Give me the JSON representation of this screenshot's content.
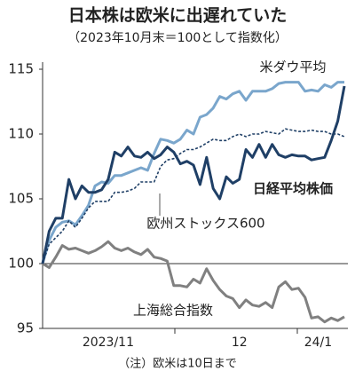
{
  "chart_data": {
    "type": "line",
    "title": "日本株は欧米に出遅れていた",
    "subtitle": "（2023年10月末＝100として指数化）",
    "note": "（注）欧米は10日まで",
    "categories": [
      null,
      null,
      null,
      null,
      null,
      null,
      null,
      null,
      null,
      null,
      "2023/11",
      null,
      null,
      null,
      null,
      null,
      null,
      null,
      null,
      null,
      null,
      null,
      null,
      null,
      null,
      null,
      null,
      null,
      null,
      null,
      "12",
      null,
      null,
      null,
      null,
      null,
      null,
      null,
      null,
      null,
      null,
      null,
      "24/1",
      null,
      null,
      null,
      null
    ],
    "series": [
      {
        "name": "米ダウ平均",
        "color": "#7aa6cc",
        "style": "solid",
        "values": [
          100,
          101.8,
          102.8,
          103.2,
          103.3,
          103,
          103.7,
          104.5,
          106,
          106.3,
          106.2,
          106.8,
          106.8,
          107,
          107.2,
          107.4,
          107.2,
          108.5,
          109.6,
          109.5,
          109.3,
          109.6,
          110.3,
          110,
          111.3,
          111.5,
          112,
          112.9,
          112.7,
          113.1,
          113.3,
          112.6,
          113.3,
          113.3,
          113.3,
          113.5,
          113.9,
          114,
          114,
          114,
          113.3,
          113.4,
          113.3,
          113.8,
          113.6,
          114,
          114
        ]
      },
      {
        "name": "欧州ストックス600",
        "color": "#1f3f66",
        "style": "dotted",
        "values": [
          100,
          101.5,
          102,
          102.5,
          103.3,
          102.8,
          103.5,
          104.3,
          104.8,
          104.8,
          104.8,
          105.5,
          105.5,
          105.6,
          105.8,
          106.3,
          106.3,
          106.3,
          107.5,
          108,
          108.1,
          108.5,
          108.8,
          108.8,
          109,
          109.3,
          109.6,
          109.5,
          109.5,
          109.8,
          110,
          109.8,
          110,
          110,
          110.2,
          110.1,
          110,
          110.4,
          110.3,
          110.2,
          110.2,
          110.3,
          110.2,
          110.2,
          110,
          110,
          109.8
        ]
      },
      {
        "name": "上海総合指数",
        "color": "#808080",
        "style": "solid",
        "values": [
          100,
          99.7,
          100.5,
          101.4,
          101.1,
          101.2,
          101,
          100.8,
          101,
          101.3,
          101.7,
          101.2,
          101,
          101.2,
          100.9,
          100.7,
          101.1,
          100.5,
          100.4,
          100.2,
          98.3,
          98.3,
          98.2,
          98.8,
          98.5,
          99.6,
          98.7,
          98,
          97.5,
          97.3,
          96.6,
          97.2,
          96.8,
          96.7,
          97,
          96.6,
          98.2,
          98.6,
          98,
          98.1,
          97.4,
          95.8,
          95.9,
          95.5,
          95.8,
          95.6,
          95.9
        ]
      },
      {
        "name": "日経平均株価",
        "color": "#1f3f66",
        "style": "solid",
        "values": [
          100,
          102.5,
          103.5,
          103.5,
          106.5,
          105,
          106,
          105.5,
          105.5,
          105.7,
          106.5,
          108.6,
          108.3,
          109,
          108.3,
          108.2,
          108.6,
          108.1,
          108.4,
          109,
          108.6,
          107.7,
          107.9,
          107.6,
          106.1,
          108.2,
          105.8,
          105,
          106.7,
          106.2,
          106.5,
          108.8,
          108.2,
          109.2,
          108.2,
          109.2,
          108.4,
          108.2,
          108.4,
          108.3,
          108.3,
          108,
          108.1,
          108.2,
          109.5,
          111,
          113.7
        ]
      }
    ],
    "ylim": [
      95,
      115
    ],
    "yticks": [
      95,
      100,
      105,
      110,
      115
    ],
    "reference_line": 100
  }
}
